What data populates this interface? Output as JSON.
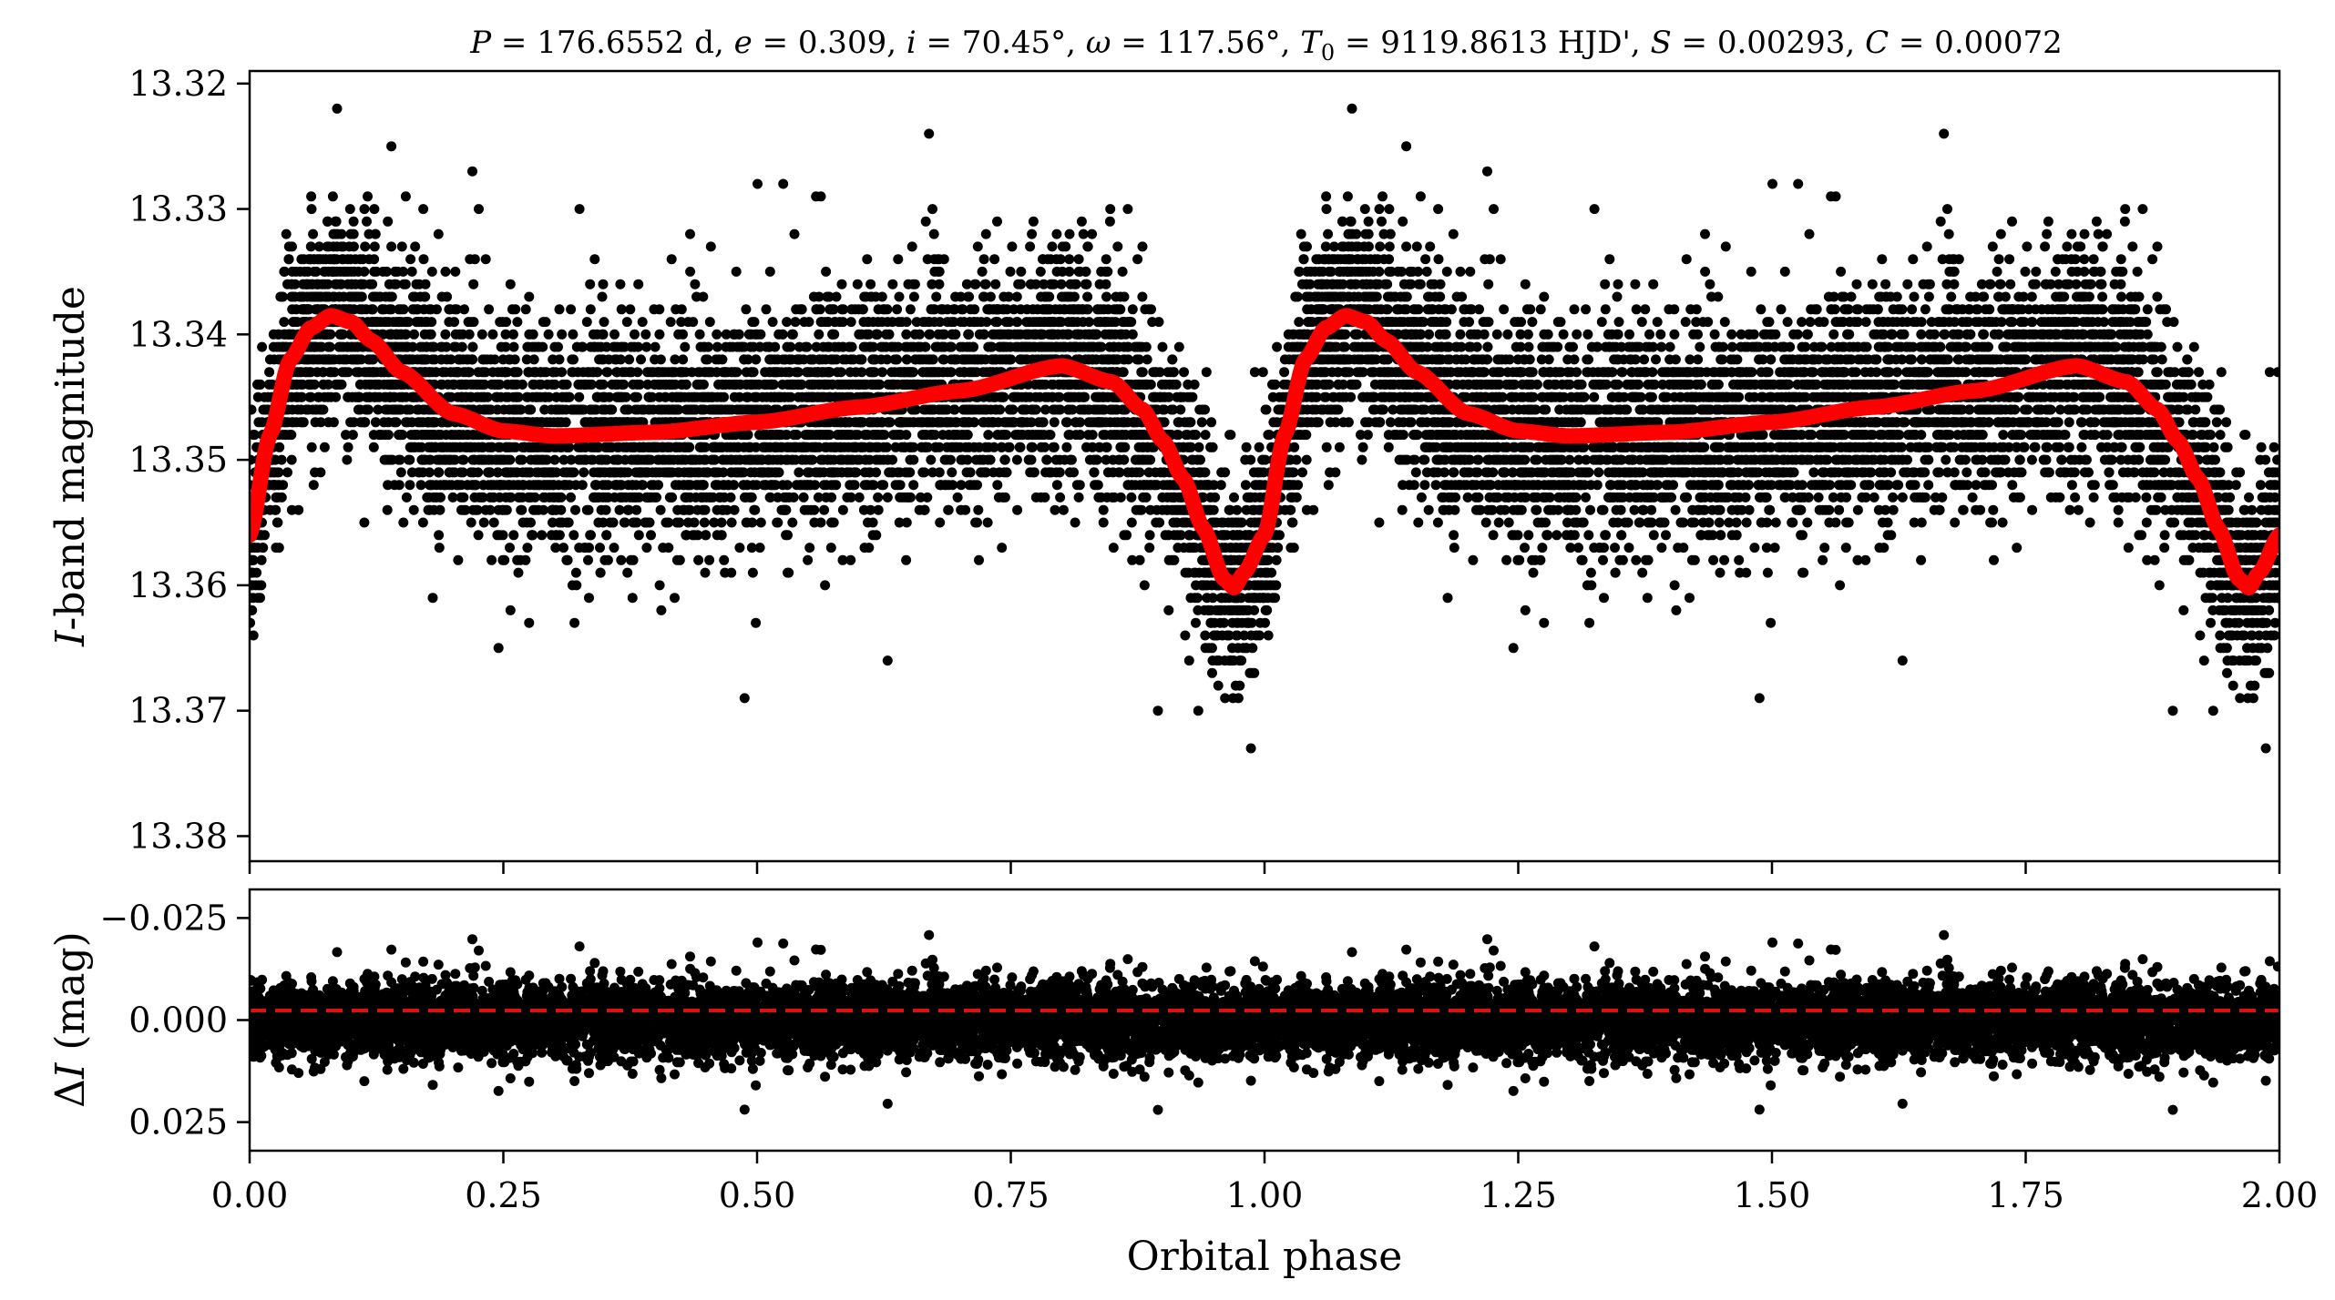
{
  "chart_data": [
    {
      "type": "scatter",
      "panel": "light-curve",
      "title": "P = 176.6552 d, e = 0.309, i = 70.45°, ω = 117.56°, T0 = 9119.8613 HJD', S = 0.00293, C = 0.00072",
      "title_parts": {
        "p_sym": "P",
        "p_val": " = 176.6552 d, ",
        "e_sym": "e",
        "e_val": " = 0.309, ",
        "i_sym": "i",
        "i_val": " = 70.45°, ",
        "w_sym": "ω",
        "w_val": " = 117.56°, ",
        "t_sym": "T",
        "t_sub": "0",
        "t_val": " = 9119.8613 HJD', ",
        "s_sym": "S",
        "s_val": " = 0.00293, ",
        "c_sym": "C",
        "c_val": " = 0.00072"
      },
      "xlabel": "Orbital phase",
      "ylabel_italic": "I",
      "ylabel_rest": "-band magnitude",
      "xlim": [
        0.0,
        2.0
      ],
      "ylim": [
        13.382,
        13.319
      ],
      "y_inverted": true,
      "y_ticks": [
        "13.32",
        "13.33",
        "13.34",
        "13.35",
        "13.36",
        "13.37",
        "13.38"
      ],
      "x_ticks": [
        0.0,
        0.25,
        0.5,
        0.75,
        1.0,
        1.25,
        1.5,
        1.75,
        2.0
      ],
      "series": [
        {
          "type": "scatter",
          "color": "#000000",
          "point_count": 6000,
          "description_values": {
            "quantization_mag": 0.001,
            "scatter_sigma_mag": 0.0045,
            "brightest_point": 13.329,
            "faintest_point": 13.372
          }
        },
        {
          "type": "line",
          "color": "#ff0000",
          "x": [
            0.0,
            0.02,
            0.04,
            0.06,
            0.08,
            0.1,
            0.12,
            0.15,
            0.2,
            0.25,
            0.3,
            0.4,
            0.5,
            0.6,
            0.7,
            0.8,
            0.85,
            0.88,
            0.9,
            0.92,
            0.94,
            0.96,
            0.97,
            0.98,
            1.0
          ],
          "y": [
            13.356,
            13.348,
            13.342,
            13.3395,
            13.3385,
            13.339,
            13.3405,
            13.343,
            13.3463,
            13.3477,
            13.3481,
            13.3478,
            13.347,
            13.3458,
            13.3445,
            13.3425,
            13.3438,
            13.346,
            13.3485,
            13.3515,
            13.3555,
            13.3595,
            13.3602,
            13.359,
            13.356
          ]
        }
      ],
      "grid": false,
      "legend": "none"
    },
    {
      "type": "scatter",
      "panel": "residuals",
      "xlabel": "Orbital phase",
      "ylabel_delta": "Δ",
      "ylabel_italic": "I",
      "ylabel_rest": " (mag)",
      "xlim": [
        0.0,
        2.0
      ],
      "ylim": [
        0.032,
        -0.032
      ],
      "y_inverted": true,
      "y_ticks": [
        "−0.025",
        "0.000",
        "0.025"
      ],
      "x_ticks": [
        "0.00",
        "0.25",
        "0.50",
        "0.75",
        "1.00",
        "1.25",
        "1.50",
        "1.75",
        "2.00"
      ],
      "series": [
        {
          "type": "scatter",
          "color": "#000000",
          "point_count": 6000,
          "description_values": {
            "scatter_sigma_mag": 0.0045,
            "min_residual": -0.019,
            "max_residual": 0.022
          }
        },
        {
          "type": "line",
          "style": "dashed",
          "color": "#dd1111",
          "y": 0.0
        }
      ],
      "grid": false,
      "legend": "none"
    }
  ]
}
